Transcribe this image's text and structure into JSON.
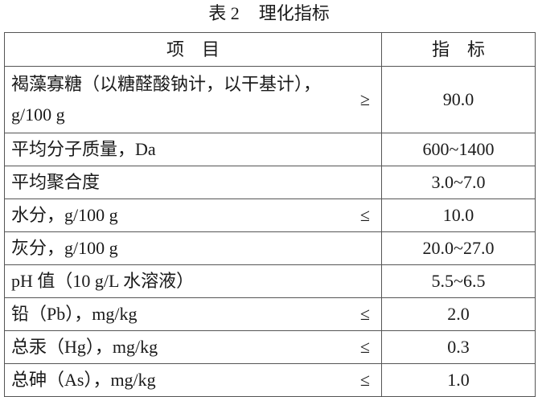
{
  "title": {
    "number": "表 2",
    "text": "理化指标"
  },
  "table": {
    "headers": [
      "项　目",
      "指　标"
    ],
    "rows": [
      {
        "item": "褐藻寡糖（以糖醛酸钠计，以干基计），g/100 g",
        "op": "≥",
        "value": "90.0"
      },
      {
        "item": "平均分子质量，Da",
        "op": "",
        "value": "600~1400"
      },
      {
        "item": "平均聚合度",
        "op": "",
        "value": "3.0~7.0"
      },
      {
        "item": "水分，g/100 g",
        "op": "≤",
        "value": "10.0"
      },
      {
        "item": "灰分，g/100 g",
        "op": "",
        "value": "20.0~27.0"
      },
      {
        "item": "pH 值（10 g/L 水溶液）",
        "op": "",
        "value": "5.5~6.5"
      },
      {
        "item": "铅（Pb），mg/kg",
        "op": "≤",
        "value": "2.0"
      },
      {
        "item": "总汞（Hg），mg/kg",
        "op": "≤",
        "value": "0.3"
      },
      {
        "item": "总砷（As），mg/kg",
        "op": "≤",
        "value": "1.0"
      }
    ]
  }
}
